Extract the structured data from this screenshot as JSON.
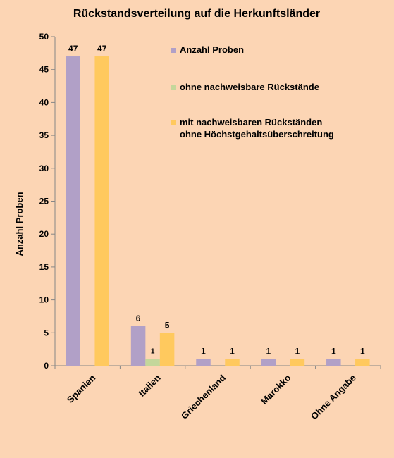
{
  "chart_data": {
    "type": "bar",
    "title": "Rückstandsverteilung auf die Herkunftsländer",
    "ylabel": "Anzahl Proben",
    "xlabel": "",
    "ylim": [
      0,
      50
    ],
    "yticks": [
      0,
      5,
      10,
      15,
      20,
      25,
      30,
      35,
      40,
      45,
      50
    ],
    "grid": false,
    "legend_position": "top-right",
    "categories": [
      "Spanien",
      "Italien",
      "Griechenland",
      "Marokko",
      "Ohne Angabe"
    ],
    "series": [
      {
        "name": "Anzahl Proben",
        "values": [
          47,
          6,
          1,
          1,
          1
        ],
        "color": "#b1a0c7"
      },
      {
        "name": "ohne nachweisbare Rückstände",
        "values": [
          0,
          1,
          0,
          0,
          0
        ],
        "color": "#c4d79b"
      },
      {
        "name": "mit nachweisbaren Rückständen\nohne Höchstgehaltsüberschreitung",
        "values": [
          47,
          5,
          1,
          1,
          1
        ],
        "color": "#ffc95e"
      }
    ],
    "background_color": "#fcd5b4"
  }
}
